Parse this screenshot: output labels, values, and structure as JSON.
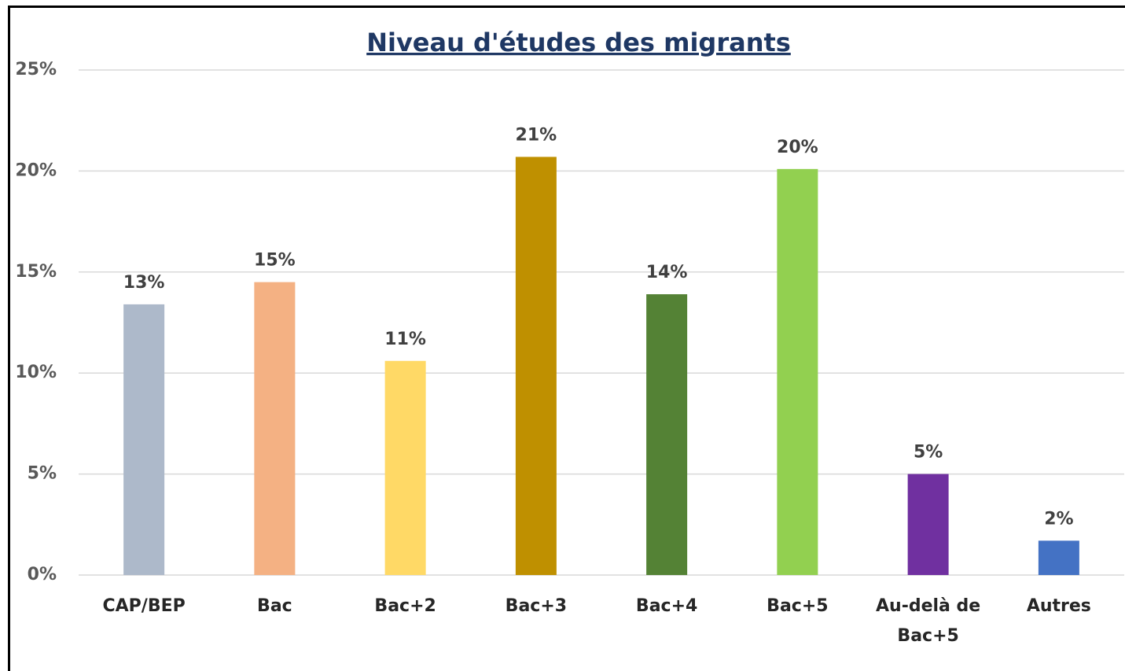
{
  "chart_data": {
    "type": "bar",
    "title": "Niveau d'études des migrants",
    "categories": [
      "CAP/BEP",
      "Bac",
      "Bac+2",
      "Bac+3",
      "Bac+4",
      "Bac+5",
      "Au-delà de Bac+5",
      "Autres"
    ],
    "values": [
      13.4,
      14.5,
      10.6,
      20.7,
      13.9,
      20.1,
      5.0,
      1.7
    ],
    "value_labels": [
      "13%",
      "15%",
      "11%",
      "21%",
      "14%",
      "20%",
      "5%",
      "2%"
    ],
    "colors": [
      "#adb9ca",
      "#f4b183",
      "#ffd966",
      "#bf9000",
      "#548235",
      "#92d050",
      "#7030a0",
      "#4472c4"
    ],
    "ylim": [
      0,
      25
    ],
    "yticks": [
      {
        "value": 0,
        "label": "0%"
      },
      {
        "value": 5,
        "label": "5%"
      },
      {
        "value": 10,
        "label": "10%"
      },
      {
        "value": 15,
        "label": "15%"
      },
      {
        "value": 20,
        "label": "20%"
      },
      {
        "value": 25,
        "label": "25%"
      }
    ],
    "grid": true
  }
}
